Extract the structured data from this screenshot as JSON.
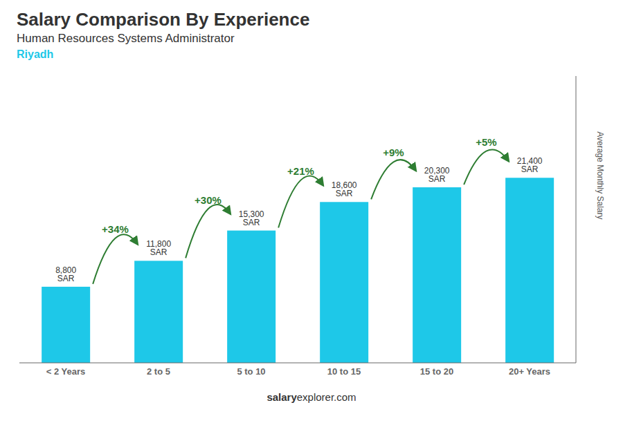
{
  "chart_data": {
    "type": "bar",
    "title": "Salary Comparison By Experience",
    "subtitle": "Human Resources Systems Administrator",
    "city": "Riyadh",
    "ylabel": "Average Monthly Salary",
    "categories": [
      "< 2 Years",
      "2 to 5",
      "5 to 10",
      "10 to 15",
      "15 to 20",
      "20+ Years"
    ],
    "values": [
      8800,
      11800,
      15300,
      18600,
      20300,
      21400
    ],
    "value_labels": [
      "8,800 SAR",
      "11,800 SAR",
      "15,300 SAR",
      "18,600 SAR",
      "20,300 SAR",
      "21,400 SAR"
    ],
    "data_labels": true,
    "annotations": [
      "+34%",
      "+30%",
      "+21%",
      "+9%",
      "+5%"
    ],
    "color": "#1EC8E8",
    "ylim": [
      0,
      33170
    ],
    "tick_labels": "x",
    "grid": false,
    "footer": [
      "salary",
      "explorer.com"
    ]
  }
}
